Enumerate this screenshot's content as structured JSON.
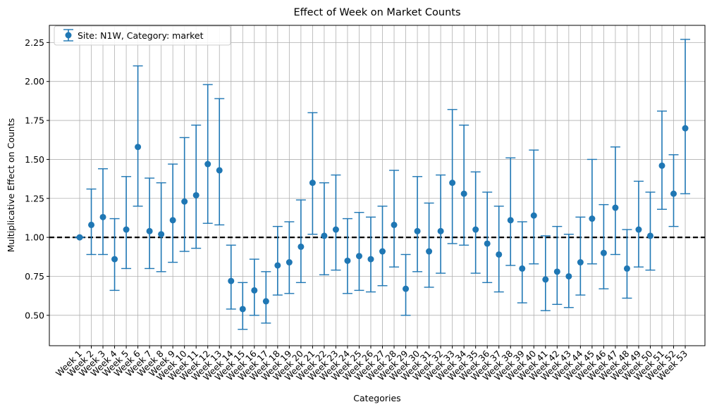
{
  "chart_data": {
    "type": "scatter",
    "title": "Effect of Week on Market Counts",
    "xlabel": "Categories",
    "ylabel": "Multiplicative Effect on Counts",
    "ylim": [
      0.305,
      2.36
    ],
    "yticks": [
      0.5,
      0.75,
      1.0,
      1.25,
      1.5,
      1.75,
      2.0,
      2.25
    ],
    "ytick_labels": [
      "0.50",
      "0.75",
      "1.00",
      "1.25",
      "1.50",
      "1.75",
      "2.00",
      "2.25"
    ],
    "grid": true,
    "legend_position": "top-left",
    "reference_line": 1.0,
    "marker_color": "#1f77b4",
    "reference_line_color": "#000000",
    "categories": [
      "Week 1",
      "Week 2",
      "Week 3",
      "Week 4",
      "Week 5",
      "Week 6",
      "Week 7",
      "Week 8",
      "Week 9",
      "Week 10",
      "Week 11",
      "Week 12",
      "Week 13",
      "Week 14",
      "Week 15",
      "Week 16",
      "Week 17",
      "Week 18",
      "Week 19",
      "Week 20",
      "Week 21",
      "Week 22",
      "Week 23",
      "Week 24",
      "Week 25",
      "Week 26",
      "Week 27",
      "Week 28",
      "Week 29",
      "Week 30",
      "Week 31",
      "Week 32",
      "Week 33",
      "Week 34",
      "Week 35",
      "Week 36",
      "Week 37",
      "Week 38",
      "Week 39",
      "Week 40",
      "Week 41",
      "Week 42",
      "Week 43",
      "Week 44",
      "Week 45",
      "Week 46",
      "Week 47",
      "Week 48",
      "Week 49",
      "Week 50",
      "Week 51",
      "Week 52",
      "Week 53"
    ],
    "series": [
      {
        "name": "Site: N1W, Category: market",
        "values": [
          1.0,
          1.08,
          1.13,
          0.86,
          1.05,
          1.58,
          1.04,
          1.02,
          1.11,
          1.23,
          1.27,
          1.47,
          1.43,
          0.72,
          0.54,
          0.66,
          0.59,
          0.82,
          0.84,
          0.94,
          1.35,
          1.01,
          1.05,
          0.85,
          0.88,
          0.86,
          0.91,
          1.08,
          0.67,
          1.04,
          0.91,
          1.04,
          1.35,
          1.28,
          1.05,
          0.96,
          0.89,
          1.11,
          0.8,
          1.14,
          0.73,
          0.78,
          0.75,
          0.84,
          1.12,
          0.9,
          1.19,
          0.8,
          1.05,
          1.01,
          1.46,
          1.28,
          1.7
        ],
        "lower": [
          1.0,
          0.89,
          0.89,
          0.66,
          0.8,
          1.2,
          0.8,
          0.78,
          0.84,
          0.91,
          0.93,
          1.09,
          1.08,
          0.54,
          0.41,
          0.5,
          0.45,
          0.63,
          0.64,
          0.71,
          1.02,
          0.76,
          0.79,
          0.64,
          0.66,
          0.65,
          0.69,
          0.81,
          0.5,
          0.78,
          0.68,
          0.77,
          0.96,
          0.95,
          0.77,
          0.71,
          0.65,
          0.82,
          0.58,
          0.83,
          0.53,
          0.57,
          0.55,
          0.63,
          0.83,
          0.67,
          0.89,
          0.61,
          0.81,
          0.79,
          1.18,
          1.07,
          1.28
        ],
        "upper": [
          1.0,
          1.31,
          1.44,
          1.12,
          1.39,
          2.1,
          1.38,
          1.35,
          1.47,
          1.64,
          1.72,
          1.98,
          1.89,
          0.95,
          0.71,
          0.86,
          0.78,
          1.07,
          1.1,
          1.24,
          1.8,
          1.35,
          1.4,
          1.12,
          1.16,
          1.13,
          1.2,
          1.43,
          0.89,
          1.39,
          1.22,
          1.4,
          1.82,
          1.72,
          1.42,
          1.29,
          1.2,
          1.51,
          1.1,
          1.56,
          1.01,
          1.07,
          1.02,
          1.13,
          1.5,
          1.21,
          1.58,
          1.05,
          1.36,
          1.29,
          1.81,
          1.53,
          2.27
        ]
      }
    ]
  }
}
